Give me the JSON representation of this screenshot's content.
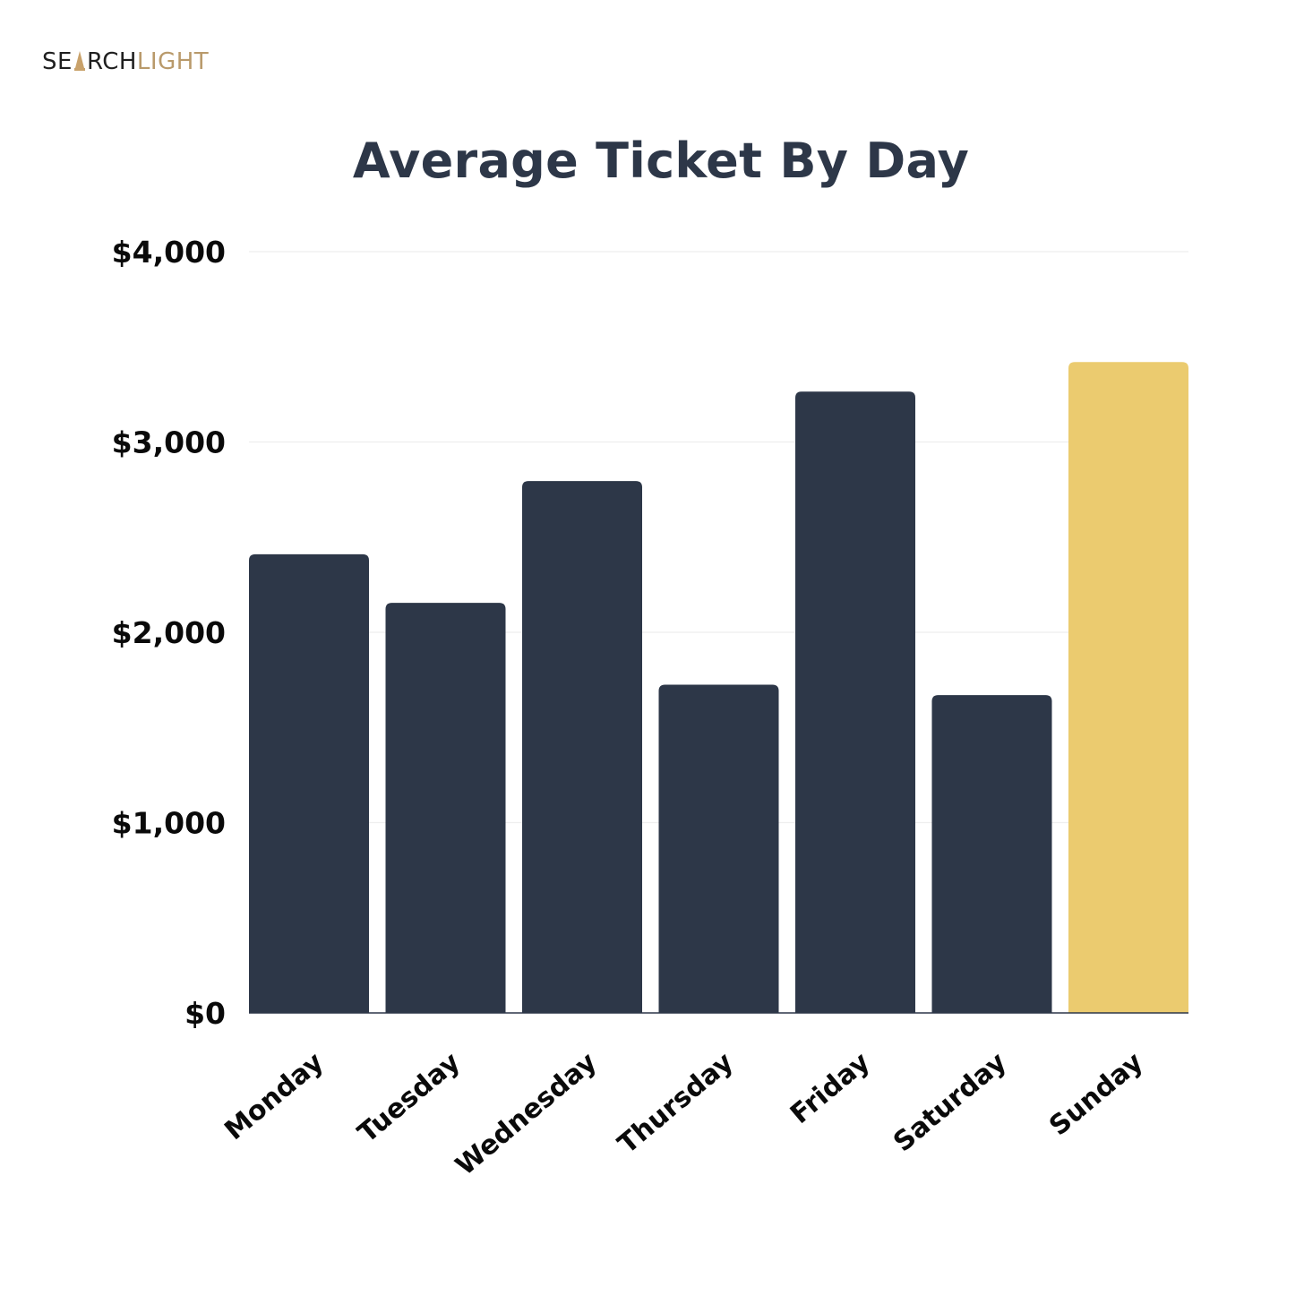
{
  "brand": {
    "logo_part1": "SE",
    "logo_part2": "RCH",
    "logo_part3": "LIGHT",
    "colors": {
      "dark": "#1f1f1f",
      "light": "#b99a6b"
    }
  },
  "colors": {
    "bar": "#2d3748",
    "highlight": "#ebcb6f",
    "grid": "#eeeeee",
    "baseline": "#2d3748"
  },
  "chart_data": {
    "type": "bar",
    "title": "Average Ticket By Day",
    "xlabel": "",
    "ylabel": "",
    "categories": [
      "Monday",
      "Tuesday",
      "Wednesday",
      "Thursday",
      "Friday",
      "Saturday",
      "Sunday"
    ],
    "values": [
      2410,
      2155,
      2795,
      1725,
      3265,
      1670,
      3420
    ],
    "highlight_category": "Sunday",
    "ylim": [
      0,
      4000
    ],
    "yticks": [
      0,
      1000,
      2000,
      3000,
      4000
    ],
    "ytick_labels": [
      "$0",
      "$1,000",
      "$2,000",
      "$3,000",
      "$4,000"
    ],
    "grid": true,
    "legend": "none"
  }
}
